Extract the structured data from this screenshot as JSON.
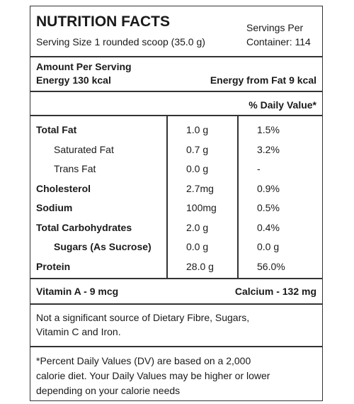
{
  "header": {
    "title": "NUTRITION FACTS",
    "serving_size": "Serving Size 1 rounded scoop (35.0 g)",
    "servings_per_container": [
      "Servings Per",
      "Container: 114"
    ]
  },
  "amount": {
    "heading": "Amount Per Serving",
    "energy": "Energy 130 kcal",
    "energy_from_fat": "Energy from Fat 9 kcal"
  },
  "daily_value_heading": "% Daily Value*",
  "table": {
    "rows": [
      [
        "Total Fat",
        "1.0 g",
        "1.5%"
      ],
      [
        "Saturated Fat",
        "0.7 g",
        "3.2%"
      ],
      [
        "Trans Fat",
        "0.0 g",
        "-"
      ],
      [
        "Cholesterol",
        "2.7mg",
        "0.9%"
      ],
      [
        "Sodium",
        "100mg",
        "0.5%"
      ],
      [
        "Total Carbohydrates",
        "2.0 g",
        "0.4%"
      ],
      [
        "Sugars (As Sucrose)",
        "0.0 g",
        "0.0 g"
      ],
      [
        "Protein",
        "28.0 g",
        "56.0%"
      ]
    ]
  },
  "vitamins": {
    "vitamin_a": "Vitamin A - 9 mcg",
    "calcium": "Calcium - 132 mg"
  },
  "note": {
    "lines": [
      "Not a significant source of Dietary Fibre, Sugars,",
      "Vitamin C and Iron."
    ]
  },
  "footnote": {
    "lines": [
      "*Percent Daily Values (DV) are based on a 2,000",
      "calorie diet. Your Daily Values may be higher or lower",
      "depending on your calorie needs"
    ]
  }
}
